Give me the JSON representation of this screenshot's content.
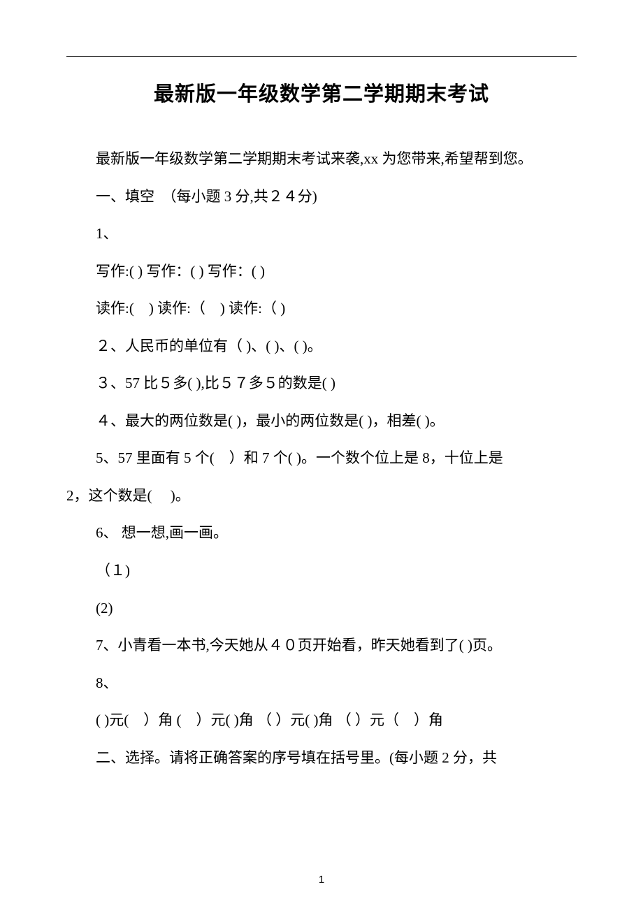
{
  "title": "最新版一年级数学第二学期期末考试",
  "intro": "最新版一年级数学第二学期期末考试来袭,xx 为您带来,希望帮到您。",
  "section1_header": "一、填空　（每小题 3 分,共２４分)",
  "q1": "1、",
  "q1_line1": "写作:( ) 写作：( ) 写作：( )",
  "q1_line2": "读作:(　) 读作:（　) 读作:（ )",
  "q2": "２、人民币的单位有（ )、( )、(  )。",
  "q3": "３、57 比５多(  ),比５７多５的数是( )",
  "q4": "４、最大的两位数是( )，最小的两位数是(    )，相差( )。",
  "q5": "5、57 里面有 5 个(　）和 7 个(  )。一个数个位上是 8，十位上是",
  "q5_cont": "2，这个数是(　 )。",
  "q6": "6、  想一想,画一画。",
  "q6_1": "（１)",
  "q6_2": "(2)",
  "q7": "7、小青看一本书,今天她从４０页开始看，昨天她看到了( )页。",
  "q8": "8、",
  "q8_line": "( )元(　）角  (　）元( )角  （  ）元(  )角  （  ）元（　）角",
  "section2_header": "二、选择。请将正确答案的序号填在括号里。(每小题 2 分，共",
  "page_number": "1",
  "colors": {
    "text": "#000000",
    "background": "#ffffff",
    "line": "#000000"
  },
  "typography": {
    "title_fontsize": 29,
    "body_fontsize": 21,
    "pagenum_fontsize": 15,
    "line_height": 2.55,
    "text_indent_em": 2
  }
}
